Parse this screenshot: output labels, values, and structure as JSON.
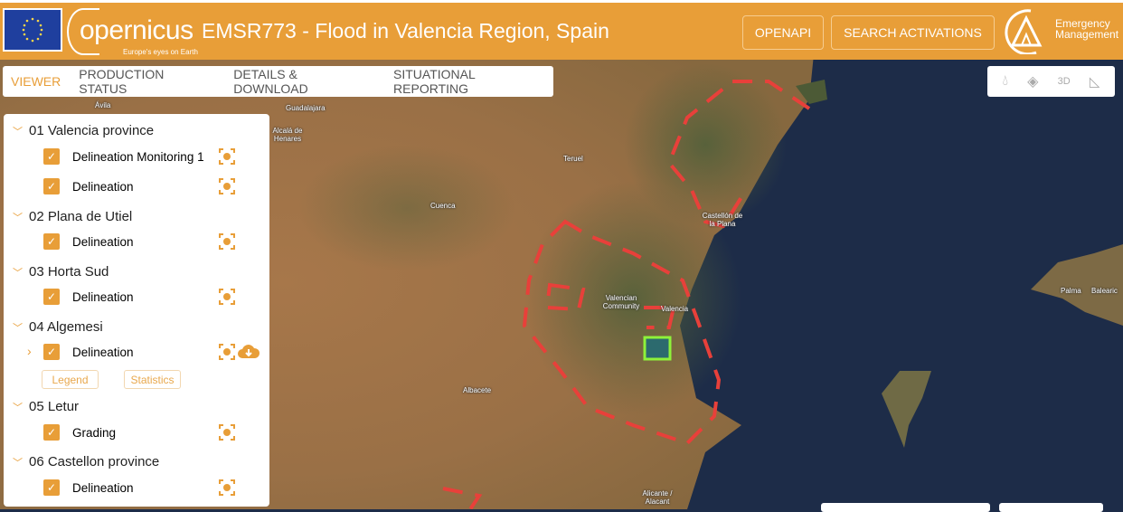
{
  "header": {
    "title": "EMSR773 - Flood in Valencia Region, Spain",
    "logo_text": "opernicus",
    "logo_tagline": "Europe's eyes on Earth",
    "openapi_label": "OPENAPI",
    "search_label": "SEARCH ACTIVATIONS",
    "em_line1": "Emergency",
    "em_line2": "Management"
  },
  "tabs": [
    {
      "label": "VIEWER",
      "active": true
    },
    {
      "label": "PRODUCTION STATUS"
    },
    {
      "label": "DETAILS & DOWNLOAD"
    },
    {
      "label": "SITUATIONAL REPORTING"
    }
  ],
  "map_tools": [
    "water-drop-icon",
    "layers-icon",
    "3d-icon",
    "measure-icon"
  ],
  "map_tools_3d": "3D",
  "layers": {
    "groups": [
      {
        "name": "01 Valencia province",
        "items": [
          {
            "label": "Delineation Monitoring 1",
            "checked": true
          },
          {
            "label": "Delineation",
            "checked": true
          }
        ]
      },
      {
        "name": "02 Plana de Utiel",
        "items": [
          {
            "label": "Delineation",
            "checked": true
          }
        ]
      },
      {
        "name": "03 Horta Sud",
        "items": [
          {
            "label": "Delineation",
            "checked": true
          }
        ]
      },
      {
        "name": "04 Algemesi",
        "items": [
          {
            "label": "Delineation",
            "checked": true
          }
        ]
      },
      {
        "name": "05 Letur",
        "items": [
          {
            "label": "Grading",
            "checked": true
          }
        ]
      },
      {
        "name": "06 Castellon province",
        "items": [
          {
            "label": "Delineation",
            "checked": true
          }
        ]
      }
    ],
    "legend_label": "Legend",
    "statistics_label": "Statistics"
  },
  "map_labels": {
    "avila": "Ávila",
    "guadalajara": "Guadalajara",
    "alcala": "Alcalá de Henares",
    "teruel": "Teruel",
    "cuenca": "Cuenca",
    "castellon": "Castellón de la Plana",
    "community": "Valencian Community",
    "valencia": "Valencia",
    "albacete": "Albacete",
    "alicante": "Alicante / Alacant",
    "palma": "Palma",
    "balearic": "Balearic"
  },
  "colors": {
    "accent": "#e89e38",
    "aoi": "#e8403a",
    "sea": "#1d2c48"
  }
}
